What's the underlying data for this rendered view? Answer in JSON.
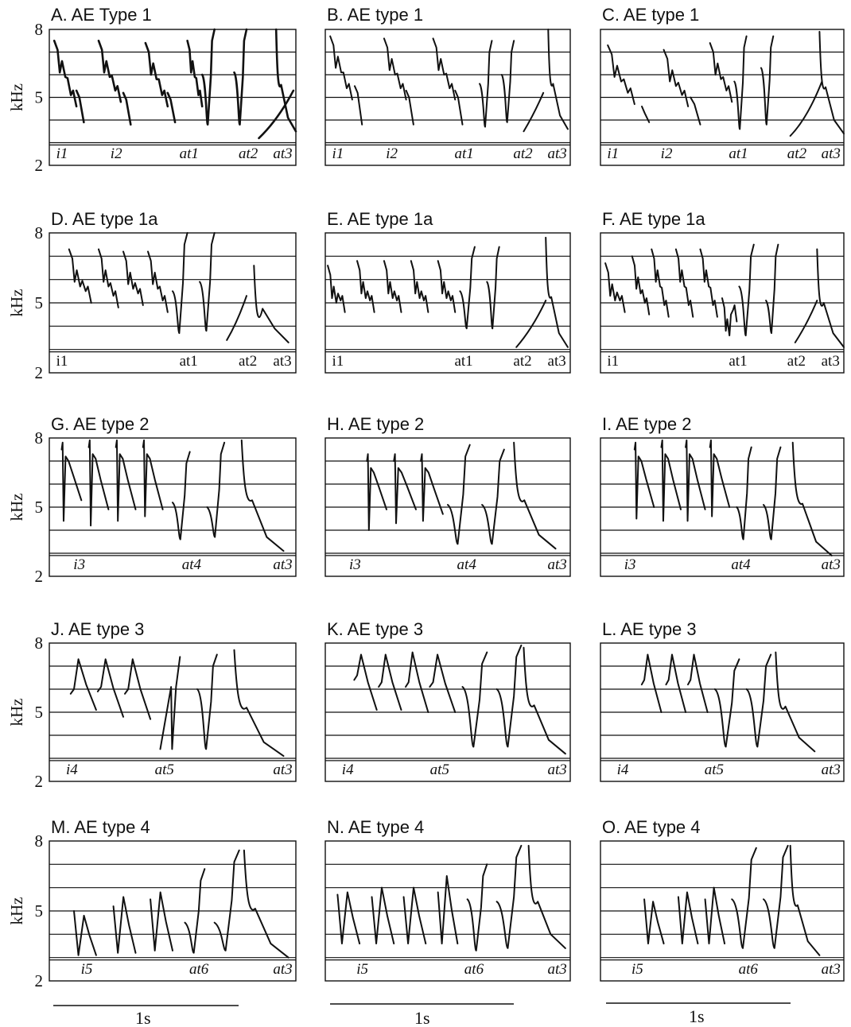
{
  "panels": [
    {
      "id": "A",
      "title": "A.  AE Type 1",
      "italic": true,
      "bold": true,
      "show_y": true,
      "segments": [
        "i1",
        "i2",
        "at1",
        "at2",
        "at3"
      ],
      "calls": [
        {
          "k": "i",
          "x": 0.02,
          "w": 0.09,
          "top": 7.5,
          "bot": 4.6
        },
        {
          "k": "t",
          "x": 0.11,
          "w": 0.03,
          "top": 5.3,
          "bot": 3.9
        },
        {
          "k": "i",
          "x": 0.2,
          "w": 0.09,
          "top": 7.5,
          "bot": 4.8
        },
        {
          "k": "t",
          "x": 0.3,
          "w": 0.03,
          "top": 5.2,
          "bot": 3.8
        },
        {
          "k": "i",
          "x": 0.39,
          "w": 0.09,
          "top": 7.4,
          "bot": 4.6
        },
        {
          "k": "t",
          "x": 0.48,
          "w": 0.03,
          "top": 5.2,
          "bot": 3.9
        },
        {
          "k": "i",
          "x": 0.56,
          "w": 0.06,
          "top": 7.5,
          "bot": 4.6
        },
        {
          "k": "v",
          "x": 0.62,
          "w": 0.05,
          "top": 6.0,
          "bot": 3.8,
          "top2": 8.0
        },
        {
          "k": "v",
          "x": 0.75,
          "w": 0.05,
          "top": 6.1,
          "bot": 3.8,
          "top2": 8.0
        },
        {
          "k": "u",
          "x": 0.85,
          "w": 0.14,
          "top": 5.3,
          "bot": 3.2
        },
        {
          "k": "d",
          "x": 0.92,
          "w": 0.08,
          "top": 8.0,
          "bot": 3.5
        }
      ]
    },
    {
      "id": "B",
      "title": "B.  AE type 1",
      "italic": true,
      "bold": false,
      "show_y": false,
      "segments": [
        "i1",
        "i2",
        "at1",
        "at2",
        "at3"
      ],
      "calls": [
        {
          "k": "i",
          "x": 0.02,
          "w": 0.09,
          "top": 7.7,
          "bot": 4.9
        },
        {
          "k": "t",
          "x": 0.12,
          "w": 0.03,
          "top": 5.5,
          "bot": 3.8
        },
        {
          "k": "i",
          "x": 0.24,
          "w": 0.09,
          "top": 7.6,
          "bot": 4.9
        },
        {
          "k": "t",
          "x": 0.33,
          "w": 0.03,
          "top": 5.3,
          "bot": 3.8
        },
        {
          "k": "i",
          "x": 0.44,
          "w": 0.09,
          "top": 7.6,
          "bot": 4.9
        },
        {
          "k": "t",
          "x": 0.53,
          "w": 0.03,
          "top": 5.3,
          "bot": 3.8
        },
        {
          "k": "v",
          "x": 0.63,
          "w": 0.05,
          "top": 5.6,
          "bot": 3.7,
          "top2": 7.5
        },
        {
          "k": "v",
          "x": 0.72,
          "w": 0.05,
          "top": 6.0,
          "bot": 3.9,
          "top2": 7.5
        },
        {
          "k": "u",
          "x": 0.81,
          "w": 0.08,
          "top": 5.2,
          "bot": 3.5
        },
        {
          "k": "d",
          "x": 0.91,
          "w": 0.08,
          "top": 8.0,
          "bot": 3.6
        }
      ]
    },
    {
      "id": "C",
      "title": "C.  AE type 1",
      "italic": true,
      "bold": false,
      "show_y": false,
      "segments": [
        "i1",
        "i2",
        "at1",
        "at2",
        "at3"
      ],
      "calls": [
        {
          "k": "i",
          "x": 0.03,
          "w": 0.11,
          "top": 7.3,
          "bot": 4.7
        },
        {
          "k": "t",
          "x": 0.17,
          "w": 0.03,
          "top": 4.6,
          "bot": 3.9
        },
        {
          "k": "i",
          "x": 0.26,
          "w": 0.1,
          "top": 7.1,
          "bot": 4.6
        },
        {
          "k": "t",
          "x": 0.37,
          "w": 0.04,
          "top": 5.0,
          "bot": 3.8
        },
        {
          "k": "i",
          "x": 0.45,
          "w": 0.09,
          "top": 7.4,
          "bot": 4.8
        },
        {
          "k": "v",
          "x": 0.55,
          "w": 0.05,
          "top": 5.7,
          "bot": 3.6,
          "top2": 7.7
        },
        {
          "k": "v",
          "x": 0.66,
          "w": 0.05,
          "top": 6.3,
          "bot": 3.8,
          "top2": 7.7
        },
        {
          "k": "u",
          "x": 0.78,
          "w": 0.13,
          "top": 5.7,
          "bot": 3.3
        },
        {
          "k": "d",
          "x": 0.9,
          "w": 0.1,
          "top": 7.9,
          "bot": 3.4
        }
      ]
    },
    {
      "id": "D",
      "title": "D.  AE type 1a",
      "italic": false,
      "bold": false,
      "show_y": true,
      "segments": [
        "i1",
        "at1",
        "at2",
        "at3"
      ],
      "calls": [
        {
          "k": "i",
          "x": 0.08,
          "w": 0.09,
          "top": 7.3,
          "bot": 5.0
        },
        {
          "k": "i",
          "x": 0.2,
          "w": 0.08,
          "top": 7.3,
          "bot": 4.8
        },
        {
          "k": "i",
          "x": 0.3,
          "w": 0.08,
          "top": 7.2,
          "bot": 4.9
        },
        {
          "k": "i",
          "x": 0.4,
          "w": 0.08,
          "top": 7.2,
          "bot": 4.6
        },
        {
          "k": "v",
          "x": 0.5,
          "w": 0.06,
          "top": 5.5,
          "bot": 3.7,
          "top2": 8.0
        },
        {
          "k": "v",
          "x": 0.61,
          "w": 0.06,
          "top": 5.9,
          "bot": 3.8,
          "top2": 8.0
        },
        {
          "k": "u",
          "x": 0.72,
          "w": 0.08,
          "top": 5.3,
          "bot": 3.4
        },
        {
          "k": "d",
          "x": 0.83,
          "w": 0.14,
          "top": 6.6,
          "bot": 3.3
        }
      ]
    },
    {
      "id": "E",
      "title": "E.  AE type 1a",
      "italic": false,
      "bold": false,
      "show_y": false,
      "segments": [
        "i1",
        "at1",
        "at2",
        "at3"
      ],
      "calls": [
        {
          "k": "i",
          "x": 0.01,
          "w": 0.07,
          "top": 6.6,
          "bot": 4.6
        },
        {
          "k": "i",
          "x": 0.13,
          "w": 0.07,
          "top": 6.8,
          "bot": 4.6
        },
        {
          "k": "i",
          "x": 0.24,
          "w": 0.07,
          "top": 6.8,
          "bot": 4.6
        },
        {
          "k": "i",
          "x": 0.35,
          "w": 0.07,
          "top": 6.8,
          "bot": 4.6
        },
        {
          "k": "i",
          "x": 0.46,
          "w": 0.07,
          "top": 6.8,
          "bot": 4.6
        },
        {
          "k": "v",
          "x": 0.55,
          "w": 0.06,
          "top": 5.5,
          "bot": 3.9,
          "top2": 7.4
        },
        {
          "k": "v",
          "x": 0.66,
          "w": 0.05,
          "top": 5.9,
          "bot": 3.9,
          "top2": 7.4
        },
        {
          "k": "u",
          "x": 0.78,
          "w": 0.12,
          "top": 5.1,
          "bot": 3.1
        },
        {
          "k": "d",
          "x": 0.9,
          "w": 0.09,
          "top": 7.8,
          "bot": 3.1
        }
      ]
    },
    {
      "id": "F",
      "title": "F.  AE type 1a",
      "italic": false,
      "bold": false,
      "show_y": false,
      "segments": [
        "i1",
        "at1",
        "at2",
        "at3"
      ],
      "calls": [
        {
          "k": "i",
          "x": 0.02,
          "w": 0.08,
          "top": 6.7,
          "bot": 4.6
        },
        {
          "k": "i",
          "x": 0.13,
          "w": 0.07,
          "top": 7.0,
          "bot": 4.5
        },
        {
          "k": "i",
          "x": 0.21,
          "w": 0.07,
          "top": 7.3,
          "bot": 4.4
        },
        {
          "k": "i",
          "x": 0.31,
          "w": 0.07,
          "top": 7.3,
          "bot": 4.4
        },
        {
          "k": "i",
          "x": 0.41,
          "w": 0.07,
          "top": 7.3,
          "bot": 4.4
        },
        {
          "k": "i",
          "x": 0.5,
          "w": 0.06,
          "top": 5.2,
          "bot": 4.2
        },
        {
          "k": "v",
          "x": 0.57,
          "w": 0.06,
          "top": 5.7,
          "bot": 3.6,
          "top2": 7.5
        },
        {
          "k": "v",
          "x": 0.68,
          "w": 0.05,
          "top": 5.1,
          "bot": 3.7,
          "top2": 7.5
        },
        {
          "k": "u",
          "x": 0.8,
          "w": 0.09,
          "top": 5.1,
          "bot": 3.3
        },
        {
          "k": "d",
          "x": 0.89,
          "w": 0.11,
          "top": 7.3,
          "bot": 3.1
        }
      ]
    },
    {
      "id": "G",
      "title": "G.  AE type 2",
      "italic": true,
      "bold": false,
      "show_y": true,
      "segments": [
        "i3",
        "at4",
        "at3"
      ],
      "calls": [
        {
          "k": "h",
          "x": 0.05,
          "w": 0.08,
          "top": 7.8,
          "bot": 5.3,
          "base": 4.4
        },
        {
          "k": "h",
          "x": 0.16,
          "w": 0.08,
          "top": 7.9,
          "bot": 4.9,
          "base": 4.2
        },
        {
          "k": "h",
          "x": 0.27,
          "w": 0.08,
          "top": 7.9,
          "bot": 4.9,
          "base": 4.4
        },
        {
          "k": "h",
          "x": 0.38,
          "w": 0.08,
          "top": 7.9,
          "bot": 4.9,
          "base": 4.6
        },
        {
          "k": "v",
          "x": 0.5,
          "w": 0.07,
          "top": 5.2,
          "bot": 3.6,
          "top2": 7.4
        },
        {
          "k": "v",
          "x": 0.64,
          "w": 0.07,
          "top": 5.0,
          "bot": 3.7,
          "top2": 7.8
        },
        {
          "k": "d",
          "x": 0.78,
          "w": 0.17,
          "top": 7.9,
          "bot": 3.1
        }
      ]
    },
    {
      "id": "H",
      "title": "H.  AE type 2",
      "italic": true,
      "bold": false,
      "show_y": false,
      "segments": [
        "i3",
        "at4",
        "at3"
      ],
      "calls": [
        {
          "k": "h",
          "x": 0.17,
          "w": 0.08,
          "top": 7.3,
          "bot": 4.9,
          "base": 4.0
        },
        {
          "k": "h",
          "x": 0.28,
          "w": 0.09,
          "top": 7.3,
          "bot": 4.9,
          "base": 4.3
        },
        {
          "k": "h",
          "x": 0.39,
          "w": 0.09,
          "top": 7.3,
          "bot": 4.7,
          "base": 4.4
        },
        {
          "k": "v",
          "x": 0.5,
          "w": 0.09,
          "top": 5.1,
          "bot": 3.4,
          "top2": 7.7
        },
        {
          "k": "v",
          "x": 0.64,
          "w": 0.09,
          "top": 5.1,
          "bot": 3.4,
          "top2": 7.5
        },
        {
          "k": "d",
          "x": 0.77,
          "w": 0.17,
          "top": 7.8,
          "bot": 3.2
        }
      ]
    },
    {
      "id": "I",
      "title": "I.  AE type 2",
      "italic": true,
      "bold": false,
      "show_y": false,
      "segments": [
        "i3",
        "at4",
        "at3"
      ],
      "calls": [
        {
          "k": "h",
          "x": 0.14,
          "w": 0.08,
          "top": 7.8,
          "bot": 5.0,
          "base": 4.5
        },
        {
          "k": "h",
          "x": 0.25,
          "w": 0.08,
          "top": 7.9,
          "bot": 4.9,
          "base": 4.4
        },
        {
          "k": "h",
          "x": 0.35,
          "w": 0.08,
          "top": 7.9,
          "bot": 4.9,
          "base": 4.4
        },
        {
          "k": "h",
          "x": 0.45,
          "w": 0.08,
          "top": 7.9,
          "bot": 5.0,
          "base": 4.6
        },
        {
          "k": "v",
          "x": 0.56,
          "w": 0.06,
          "top": 5.0,
          "bot": 3.6,
          "top2": 7.6
        },
        {
          "k": "v",
          "x": 0.67,
          "w": 0.07,
          "top": 5.1,
          "bot": 3.6,
          "top2": 7.6
        },
        {
          "k": "d",
          "x": 0.79,
          "w": 0.16,
          "top": 7.8,
          "bot": 2.9
        }
      ]
    },
    {
      "id": "J",
      "title": "J.  AE type 3",
      "italic": true,
      "bold": false,
      "show_y": true,
      "segments": [
        "i4",
        "at5",
        "at3"
      ],
      "calls": [
        {
          "k": "s",
          "x": 0.1,
          "w": 0.09,
          "top": 7.3,
          "bot": 5.1,
          "start": 6.0
        },
        {
          "k": "s",
          "x": 0.21,
          "w": 0.09,
          "top": 7.3,
          "bot": 4.8,
          "start": 6.1
        },
        {
          "k": "s",
          "x": 0.32,
          "w": 0.09,
          "top": 7.3,
          "bot": 4.7,
          "start": 6.0
        },
        {
          "k": "u",
          "x": 0.45,
          "w": 0.08,
          "top": 6.1,
          "bot": 3.4,
          "top2": 7.4
        },
        {
          "k": "v",
          "x": 0.6,
          "w": 0.08,
          "top": 6.0,
          "bot": 3.4,
          "top2": 7.5
        },
        {
          "k": "d",
          "x": 0.75,
          "w": 0.2,
          "top": 7.7,
          "bot": 3.1
        }
      ]
    },
    {
      "id": "K",
      "title": "K.  AE type 3",
      "italic": true,
      "bold": false,
      "show_y": false,
      "segments": [
        "i4",
        "at5",
        "at3"
      ],
      "calls": [
        {
          "k": "s",
          "x": 0.13,
          "w": 0.08,
          "top": 7.5,
          "bot": 5.1,
          "start": 6.6
        },
        {
          "k": "s",
          "x": 0.23,
          "w": 0.08,
          "top": 7.5,
          "bot": 5.1,
          "start": 6.3
        },
        {
          "k": "s",
          "x": 0.34,
          "w": 0.08,
          "top": 7.6,
          "bot": 5.0,
          "start": 6.3
        },
        {
          "k": "s",
          "x": 0.44,
          "w": 0.09,
          "top": 7.5,
          "bot": 5.0,
          "start": 6.3
        },
        {
          "k": "v",
          "x": 0.56,
          "w": 0.1,
          "top": 6.1,
          "bot": 3.5,
          "top2": 7.6
        },
        {
          "k": "v",
          "x": 0.7,
          "w": 0.1,
          "top": 6.0,
          "bot": 3.5,
          "top2": 7.9
        },
        {
          "k": "d",
          "x": 0.81,
          "w": 0.17,
          "top": 7.8,
          "bot": 3.2
        }
      ]
    },
    {
      "id": "L",
      "title": "L.  AE type 3",
      "italic": true,
      "bold": false,
      "show_y": false,
      "segments": [
        "i4",
        "at5",
        "at3"
      ],
      "calls": [
        {
          "k": "s",
          "x": 0.18,
          "w": 0.07,
          "top": 7.5,
          "bot": 5.0,
          "start": 6.4
        },
        {
          "k": "s",
          "x": 0.28,
          "w": 0.07,
          "top": 7.5,
          "bot": 5.0,
          "start": 6.4
        },
        {
          "k": "s",
          "x": 0.37,
          "w": 0.07,
          "top": 7.5,
          "bot": 5.0,
          "start": 6.4
        },
        {
          "k": "v",
          "x": 0.47,
          "w": 0.1,
          "top": 6.0,
          "bot": 3.5,
          "top2": 7.3
        },
        {
          "k": "v",
          "x": 0.6,
          "w": 0.1,
          "top": 6.0,
          "bot": 3.5,
          "top2": 7.5
        },
        {
          "k": "d",
          "x": 0.72,
          "w": 0.16,
          "top": 7.6,
          "bot": 3.3
        }
      ]
    },
    {
      "id": "M",
      "title": "M.  AE type 4",
      "italic": true,
      "bold": false,
      "show_y": true,
      "segments": [
        "i5",
        "at6",
        "at3"
      ],
      "calls": [
        {
          "k": "w",
          "x": 0.1,
          "w": 0.09,
          "top": 5.0,
          "bot": 3.1,
          "top2": 4.8
        },
        {
          "k": "w",
          "x": 0.26,
          "w": 0.09,
          "top": 5.2,
          "bot": 3.2,
          "top2": 5.6
        },
        {
          "k": "w",
          "x": 0.41,
          "w": 0.09,
          "top": 5.5,
          "bot": 3.3,
          "top2": 5.8
        },
        {
          "k": "v",
          "x": 0.55,
          "w": 0.08,
          "top": 4.5,
          "bot": 3.2,
          "top2": 6.8
        },
        {
          "k": "v",
          "x": 0.67,
          "w": 0.1,
          "top": 4.5,
          "bot": 3.3,
          "top2": 7.6
        },
        {
          "k": "d",
          "x": 0.79,
          "w": 0.18,
          "top": 7.6,
          "bot": 3.0
        }
      ]
    },
    {
      "id": "N",
      "title": "N.  AE type 4",
      "italic": true,
      "bold": false,
      "show_y": false,
      "segments": [
        "i5",
        "at6",
        "at3"
      ],
      "calls": [
        {
          "k": "w",
          "x": 0.05,
          "w": 0.09,
          "top": 5.7,
          "bot": 3.6,
          "top2": 5.8
        },
        {
          "k": "w",
          "x": 0.19,
          "w": 0.09,
          "top": 5.6,
          "bot": 3.6,
          "top2": 6.0
        },
        {
          "k": "w",
          "x": 0.32,
          "w": 0.09,
          "top": 5.6,
          "bot": 3.6,
          "top2": 6.0
        },
        {
          "k": "w",
          "x": 0.46,
          "w": 0.08,
          "top": 5.8,
          "bot": 3.6,
          "top2": 6.5
        },
        {
          "k": "v",
          "x": 0.58,
          "w": 0.08,
          "top": 5.5,
          "bot": 3.3,
          "top2": 7.0
        },
        {
          "k": "v",
          "x": 0.7,
          "w": 0.1,
          "top": 5.4,
          "bot": 3.4,
          "top2": 7.8
        },
        {
          "k": "d",
          "x": 0.83,
          "w": 0.15,
          "top": 7.8,
          "bot": 3.4
        }
      ]
    },
    {
      "id": "O",
      "title": "O.  AE type 4",
      "italic": true,
      "bold": false,
      "show_y": false,
      "segments": [
        "i5",
        "at6",
        "at3"
      ],
      "calls": [
        {
          "k": "w",
          "x": 0.18,
          "w": 0.08,
          "top": 5.5,
          "bot": 3.6,
          "top2": 5.4
        },
        {
          "k": "w",
          "x": 0.32,
          "w": 0.08,
          "top": 5.6,
          "bot": 3.6,
          "top2": 5.8
        },
        {
          "k": "w",
          "x": 0.43,
          "w": 0.08,
          "top": 5.5,
          "bot": 3.6,
          "top2": 6.0
        },
        {
          "k": "v",
          "x": 0.54,
          "w": 0.1,
          "top": 5.5,
          "bot": 3.4,
          "top2": 7.7
        },
        {
          "k": "v",
          "x": 0.67,
          "w": 0.1,
          "top": 5.5,
          "bot": 3.4,
          "top2": 7.8
        },
        {
          "k": "d",
          "x": 0.78,
          "w": 0.12,
          "top": 7.8,
          "bot": 3.1
        }
      ]
    }
  ],
  "y_axis": {
    "label": "kHz",
    "ticks": [
      "8",
      "5",
      "2"
    ]
  },
  "scale_bars": [
    "1s",
    "1s",
    "1s"
  ]
}
